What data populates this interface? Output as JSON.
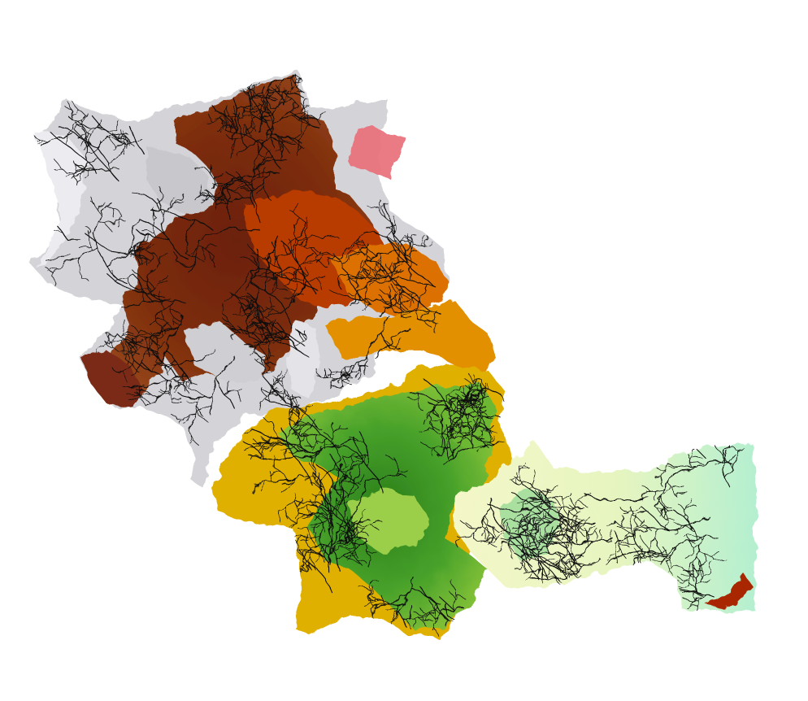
{
  "map": {
    "kind": "elevation-relief-with-drainage-network",
    "background_color": "#ffffff",
    "elevation_ramp": [
      "#b8f0d8",
      "#f2f9c4",
      "#f0e8a0",
      "#2f8a1e",
      "#4aa52a",
      "#e8b800",
      "#e07a00",
      "#c04a00",
      "#8a2800",
      "#6b2410",
      "#bdbdbd",
      "#e6e6ea"
    ],
    "stream_color": "#111111",
    "highlight_polygon_color": "#e8707a",
    "legend": null,
    "labels": []
  }
}
